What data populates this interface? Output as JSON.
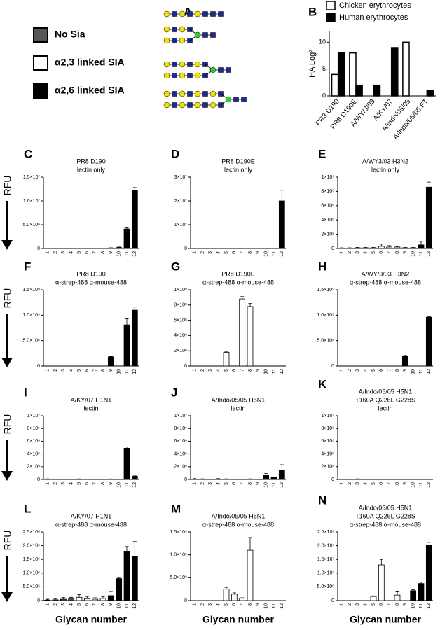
{
  "panel_a": {
    "label": "A",
    "legend": [
      {
        "label": "No Sia",
        "color": "#555555"
      },
      {
        "label": "α2,3 linked SIA",
        "color": "#ffffff"
      },
      {
        "label": "α2,6 linked SIA",
        "color": "#000000"
      }
    ]
  },
  "glycan_colors": [
    "#555555",
    "#555555",
    "#555555",
    "#555555",
    "#ffffff",
    "#ffffff",
    "#ffffff",
    "#ffffff",
    "#000000",
    "#000000",
    "#000000",
    "#000000"
  ],
  "chart_data": [
    {
      "type": "bar",
      "panel": "B",
      "ylabel": "HA Log²",
      "categories": [
        "PR8 D190",
        "PR8 D190E",
        "A/WY/3/03",
        "A/KY/07",
        "A/Indo/05/05",
        "A/Indo/05/05 FT"
      ],
      "series": [
        {
          "name": "Chicken erythrocytes",
          "color": "#ffffff",
          "values": [
            4,
            8,
            0,
            0,
            10,
            0
          ]
        },
        {
          "name": "Human erythrocytes",
          "color": "#000000",
          "values": [
            8,
            2,
            2,
            9,
            0,
            1
          ]
        }
      ],
      "ylim": [
        0,
        12
      ],
      "yticks": [
        0,
        5,
        10
      ]
    },
    {
      "type": "bar",
      "panel": "C",
      "title": [
        "PR8 D190",
        "lectin only"
      ],
      "ylabel": "RFU",
      "categories": [
        "1",
        "2",
        "3",
        "4",
        "5",
        "6",
        "7",
        "8",
        "9",
        "10",
        "11",
        "12"
      ],
      "values": [
        0,
        0,
        0,
        0,
        0,
        0,
        0,
        0,
        100000.0,
        200000.0,
        4100000.0,
        12200000.0
      ],
      "errors": [
        0,
        0,
        0,
        0,
        0,
        0,
        0,
        0,
        50000.0,
        100000.0,
        400000.0,
        600000.0
      ],
      "ylim": [
        0,
        15000000.0
      ],
      "yticks": [
        0,
        {
          "value": 5000000.0,
          "label": "5.0×10⁶"
        },
        {
          "value": 10000000.0,
          "label": "1.0×10⁷"
        },
        {
          "value": 15000000.0,
          "label": "1.5×10⁷"
        }
      ]
    },
    {
      "type": "bar",
      "panel": "D",
      "title": [
        "PR8 D190E",
        "lectin only"
      ],
      "categories": [
        "1",
        "2",
        "3",
        "4",
        "5",
        "6",
        "7",
        "8",
        "9",
        "10",
        "11",
        "12"
      ],
      "values": [
        0,
        0,
        0,
        0,
        0,
        0,
        0,
        0,
        0,
        0,
        0,
        20000000.0
      ],
      "errors": [
        0,
        0,
        0,
        0,
        0,
        0,
        0,
        0,
        0,
        0,
        0,
        4500000.0
      ],
      "ylim": [
        0,
        30000000.0
      ],
      "yticks": [
        0,
        {
          "value": 10000000.0,
          "label": "1×10⁷"
        },
        {
          "value": 20000000.0,
          "label": "2×10⁷"
        },
        {
          "value": 30000000.0,
          "label": "3×10⁷"
        }
      ]
    },
    {
      "type": "bar",
      "panel": "E",
      "title": [
        "A/WY3/03 H3N2",
        "lectin only"
      ],
      "categories": [
        "1",
        "2",
        "3",
        "4",
        "5",
        "6",
        "7",
        "8",
        "9",
        "10",
        "11",
        "12"
      ],
      "values": [
        50000.0,
        50000.0,
        100000.0,
        100000.0,
        100000.0,
        300000.0,
        200000.0,
        200000.0,
        100000.0,
        100000.0,
        500000.0,
        8600000.0
      ],
      "errors": [
        50000.0,
        50000.0,
        50000.0,
        50000.0,
        50000.0,
        300000.0,
        200000.0,
        100000.0,
        50000.0,
        50000.0,
        500000.0,
        700000.0
      ],
      "ylim": [
        0,
        10000000.0
      ],
      "yticks": [
        0,
        {
          "value": 2000000.0,
          "label": "2×10⁶"
        },
        {
          "value": 4000000.0,
          "label": "4×10⁶"
        },
        {
          "value": 6000000.0,
          "label": "6×10⁶"
        },
        {
          "value": 8000000.0,
          "label": "8×10⁶"
        },
        {
          "value": 10000000.0,
          "label": "1×10⁷"
        }
      ]
    },
    {
      "type": "bar",
      "panel": "F",
      "title": [
        "PR8 D190",
        "α-strep-488 α-mouse-488"
      ],
      "ylabel": "RFU",
      "categories": [
        "1",
        "2",
        "3",
        "4",
        "5",
        "6",
        "7",
        "8",
        "9",
        "10",
        "11",
        "12"
      ],
      "values": [
        0,
        0,
        0,
        0,
        0,
        0,
        0,
        0,
        180000000.0,
        0,
        810000000.0,
        1100000000.0
      ],
      "errors": [
        0,
        0,
        0,
        0,
        0,
        0,
        0,
        0,
        10000000.0,
        0,
        120000000.0,
        60000000.0
      ],
      "ylim": [
        0,
        1500000000.0
      ],
      "yticks": [
        0,
        {
          "value": 500000000.0,
          "label": "5.0×10⁸"
        },
        {
          "value": 1000000000.0,
          "label": "1.0×10⁹"
        },
        {
          "value": 1500000000.0,
          "label": "1.5×10⁹"
        }
      ]
    },
    {
      "type": "bar",
      "panel": "G",
      "title": [
        "PR8 D190E",
        "α-strep-488 α-mouse-488"
      ],
      "categories": [
        "1",
        "2",
        "3",
        "4",
        "5",
        "6",
        "7",
        "8",
        "9",
        "10",
        "11",
        "12"
      ],
      "values": [
        0,
        0,
        0,
        0,
        180000000.0,
        0,
        880000000.0,
        780000000.0,
        0,
        0,
        0,
        0
      ],
      "errors": [
        0,
        0,
        0,
        0,
        5000000.0,
        0,
        30000000.0,
        40000000.0,
        0,
        0,
        0,
        0
      ],
      "ylim": [
        0,
        1000000000.0
      ],
      "yticks": [
        0,
        {
          "value": 200000000.0,
          "label": "2×10⁸"
        },
        {
          "value": 400000000.0,
          "label": "4×10⁸"
        },
        {
          "value": 600000000.0,
          "label": "6×10⁸"
        },
        {
          "value": 800000000.0,
          "label": "8×10⁸"
        },
        {
          "value": 1000000000.0,
          "label": "1×10⁹"
        }
      ]
    },
    {
      "type": "bar",
      "panel": "H",
      "title": [
        "A/WY/3/03 H3N2",
        "α-strep-488 α-mouse-488"
      ],
      "categories": [
        "1",
        "2",
        "3",
        "4",
        "5",
        "6",
        "7",
        "8",
        "9",
        "10",
        "11",
        "12"
      ],
      "values": [
        0,
        0,
        0,
        0,
        0,
        0,
        0,
        0,
        200000000.0,
        0,
        0,
        960000000.0
      ],
      "errors": [
        0,
        0,
        0,
        0,
        0,
        0,
        0,
        0,
        10000000.0,
        0,
        0,
        10000000.0
      ],
      "ylim": [
        0,
        1500000000.0
      ],
      "yticks": [
        0,
        {
          "value": 500000000.0,
          "label": "5.0×10⁸"
        },
        {
          "value": 1000000000.0,
          "label": "1.0×10⁹"
        },
        {
          "value": 1500000000.0,
          "label": "1.5×10⁹"
        }
      ]
    },
    {
      "type": "bar",
      "panel": "I",
      "title": [
        "A/KY/07 H1N1",
        "lectin"
      ],
      "ylabel": "RFU",
      "categories": [
        "1",
        "2",
        "3",
        "4",
        "5",
        "6",
        "7",
        "8",
        "9",
        "10",
        "11",
        "12"
      ],
      "values": [
        50000.0,
        20000.0,
        20000.0,
        30000.0,
        50000.0,
        30000.0,
        20000.0,
        20000.0,
        30000.0,
        20000.0,
        4900000.0,
        500000.0
      ],
      "errors": [
        50000.0,
        20000.0,
        20000.0,
        30000.0,
        50000.0,
        30000.0,
        20000.0,
        20000.0,
        50000.0,
        20000.0,
        200000.0,
        150000.0
      ],
      "ylim": [
        0,
        10000000.0
      ],
      "yticks": [
        0,
        {
          "value": 2000000.0,
          "label": "2×10⁶"
        },
        {
          "value": 4000000.0,
          "label": "4×10⁶"
        },
        {
          "value": 6000000.0,
          "label": "6×10⁶"
        },
        {
          "value": 8000000.0,
          "label": "8×10⁶"
        },
        {
          "value": 10000000.0,
          "label": "1×10⁷"
        }
      ]
    },
    {
      "type": "bar",
      "panel": "J",
      "title": [
        "A/Indo/05/05 H5N1",
        "lectin"
      ],
      "categories": [
        "1",
        "2",
        "3",
        "4",
        "5",
        "6",
        "7",
        "8",
        "9",
        "10",
        "11",
        "12"
      ],
      "values": [
        50000.0,
        50000.0,
        30000.0,
        50000.0,
        50000.0,
        30000.0,
        30000.0,
        50000.0,
        30000.0,
        700000.0,
        300000.0,
        1400000.0
      ],
      "errors": [
        80000.0,
        50000.0,
        30000.0,
        80000.0,
        50000.0,
        30000.0,
        30000.0,
        50000.0,
        30000.0,
        250000.0,
        100000.0,
        900000.0
      ],
      "ylim": [
        0,
        10000000.0
      ],
      "yticks": [
        0,
        {
          "value": 2000000.0,
          "label": "2×10⁶"
        },
        {
          "value": 4000000.0,
          "label": "4×10⁶"
        },
        {
          "value": 6000000.0,
          "label": "6×10⁶"
        },
        {
          "value": 8000000.0,
          "label": "8×10⁶"
        },
        {
          "value": 10000000.0,
          "label": "1×10⁷"
        }
      ]
    },
    {
      "type": "bar",
      "panel": "K",
      "title": [
        "A/Indo/05/05 H5N1",
        "T160A Q226L G228S",
        "lectin"
      ],
      "categories": [
        "1",
        "2",
        "3",
        "4",
        "5",
        "6",
        "7",
        "8",
        "9",
        "10",
        "11",
        "12"
      ],
      "values": [
        30000.0,
        30000.0,
        50000.0,
        30000.0,
        20000.0,
        20000.0,
        20000.0,
        20000.0,
        30000.0,
        20000.0,
        20000.0,
        20000.0
      ],
      "errors": [
        40000.0,
        30000.0,
        50000.0,
        30000.0,
        20000.0,
        20000.0,
        20000.0,
        20000.0,
        30000.0,
        20000.0,
        20000.0,
        20000.0
      ],
      "ylim": [
        0,
        10000000.0
      ],
      "yticks": [
        0,
        {
          "value": 2000000.0,
          "label": "2×10⁶"
        },
        {
          "value": 4000000.0,
          "label": "4×10⁶"
        },
        {
          "value": 6000000.0,
          "label": "6×10⁶"
        },
        {
          "value": 8000000.0,
          "label": "8×10⁶"
        },
        {
          "value": 10000000.0,
          "label": "1×10⁷"
        }
      ]
    },
    {
      "type": "bar",
      "panel": "L",
      "title": [
        "A/KY/07 H1N1",
        "α-strep-488 α-mouse-488"
      ],
      "ylabel": "RFU",
      "xlabel": "Glycan number",
      "categories": [
        "1",
        "2",
        "3",
        "4",
        "5",
        "6",
        "7",
        "8",
        "9",
        "10",
        "11",
        "12"
      ],
      "values": [
        20000.0,
        30000.0,
        50000.0,
        60000.0,
        120000.0,
        70000.0,
        50000.0,
        80000.0,
        180000.0,
        800000.0,
        1800000.0,
        1600000.0
      ],
      "errors": [
        30000.0,
        40000.0,
        60000.0,
        60000.0,
        100000.0,
        80000.0,
        50000.0,
        60000.0,
        150000.0,
        40000.0,
        170000.0,
        550000.0
      ],
      "ylim": [
        0,
        2500000.0
      ],
      "yticks": [
        0,
        {
          "value": 500000.0,
          "label": "5.0×10⁵"
        },
        {
          "value": 1000000.0,
          "label": "1.0×10⁶"
        },
        {
          "value": 1500000.0,
          "label": "1.5×10⁶"
        },
        {
          "value": 2000000.0,
          "label": "2.0×10⁶"
        },
        {
          "value": 2500000.0,
          "label": "2.5×10⁶"
        }
      ]
    },
    {
      "type": "bar",
      "panel": "M",
      "title": [
        "A/Indo/05/05 H5N1",
        "α-strep-488 α-mouse-488"
      ],
      "xlabel": "Glycan number",
      "categories": [
        "1",
        "2",
        "3",
        "4",
        "5",
        "6",
        "7",
        "8",
        "9",
        "10",
        "11",
        "12"
      ],
      "values": [
        0,
        0,
        0,
        0,
        250000000.0,
        140000000.0,
        50000000.0,
        1100000000.0,
        0,
        0,
        0,
        0
      ],
      "errors": [
        0,
        0,
        0,
        0,
        40000000.0,
        30000000.0,
        10000000.0,
        280000000.0,
        0,
        0,
        0,
        0
      ],
      "ylim": [
        0,
        1500000000.0
      ],
      "yticks": [
        0,
        {
          "value": 500000000.0,
          "label": "5.0×10⁸"
        },
        {
          "value": 1000000000.0,
          "label": "1.0×10⁹"
        },
        {
          "value": 1500000000.0,
          "label": "1.5×10⁹"
        }
      ]
    },
    {
      "type": "bar",
      "panel": "N",
      "title": [
        "A/Indo/05/05 H5N1",
        "T160A Q226L G228S",
        "α-strep-488 α-mouse-488"
      ],
      "xlabel": "Glycan number",
      "categories": [
        "1",
        "2",
        "3",
        "4",
        "5",
        "6",
        "7",
        "8",
        "9",
        "10",
        "11",
        "12"
      ],
      "values": [
        0,
        0,
        0,
        0,
        1500000.0,
        13000000.0,
        0,
        2000000.0,
        0,
        3600000.0,
        6200000.0,
        20300000.0
      ],
      "errors": [
        0,
        0,
        0,
        0,
        200000.0,
        2000000.0,
        0,
        1200000.0,
        0,
        300000.0,
        500000.0,
        900000.0
      ],
      "ylim": [
        0,
        25000000.0
      ],
      "yticks": [
        0,
        {
          "value": 5000000.0,
          "label": "5.0×10⁶"
        },
        {
          "value": 10000000.0,
          "label": "1.0×10⁷"
        },
        {
          "value": 15000000.0,
          "label": "1.5×10⁷"
        },
        {
          "value": 20000000.0,
          "label": "2.0×10⁷"
        },
        {
          "value": 25000000.0,
          "label": "2.5×10⁷"
        }
      ]
    }
  ]
}
